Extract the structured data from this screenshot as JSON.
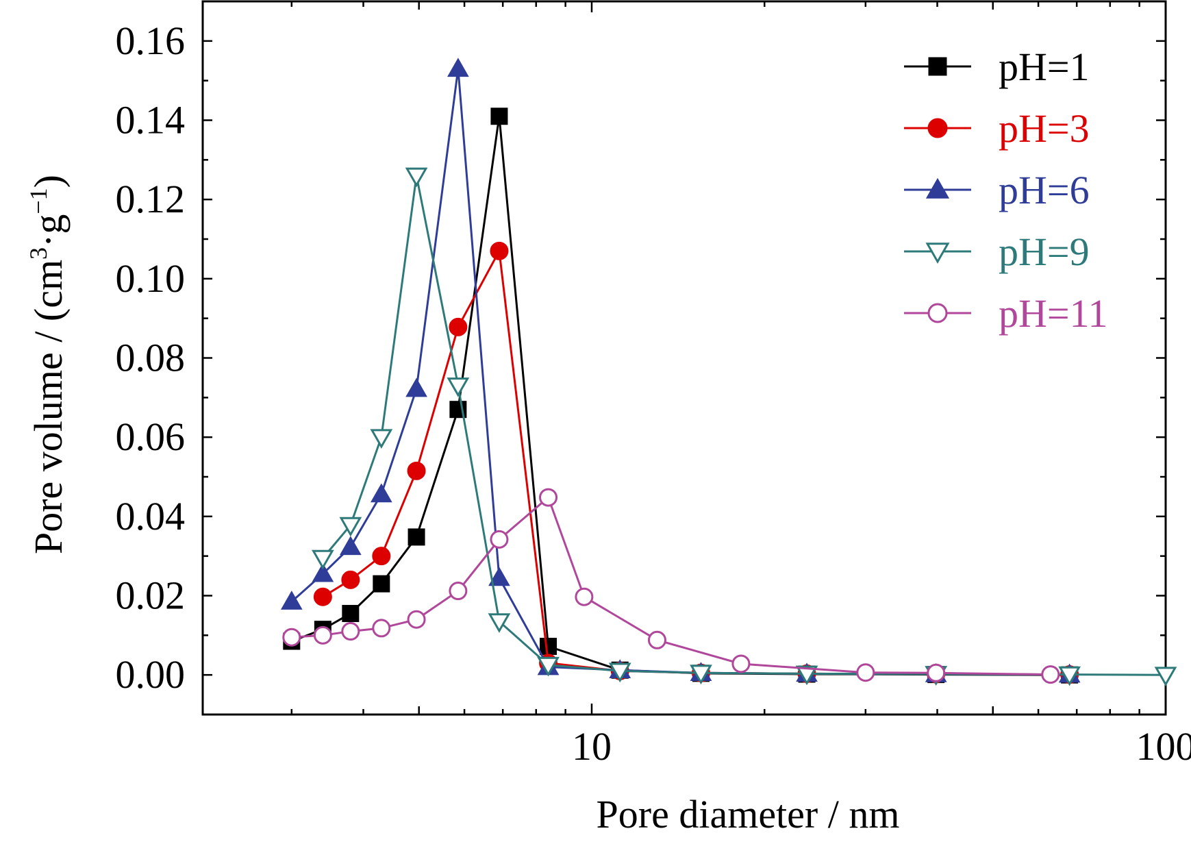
{
  "chart_data": {
    "type": "line",
    "xscale": "log",
    "xlim": [
      2.1,
      100
    ],
    "ylim": [
      -0.01,
      0.17
    ],
    "xlabel": "Pore diameter / nm",
    "ylabel_text": "Pore volume / (cm",
    "ylabel_sup1": "3",
    "ylabel_mid": "·g",
    "ylabel_sup2": "−1",
    "ylabel_end": ")",
    "xticks": [
      {
        "value": 10,
        "label": "10"
      },
      {
        "value": 100,
        "label": "100"
      }
    ],
    "yticks": [
      {
        "value": 0.0,
        "label": "0.00"
      },
      {
        "value": 0.02,
        "label": "0.02"
      },
      {
        "value": 0.04,
        "label": "0.04"
      },
      {
        "value": 0.06,
        "label": "0.06"
      },
      {
        "value": 0.08,
        "label": "0.08"
      },
      {
        "value": 0.1,
        "label": "0.10"
      },
      {
        "value": 0.12,
        "label": "0.12"
      },
      {
        "value": 0.14,
        "label": "0.14"
      },
      {
        "value": 0.16,
        "label": "0.16"
      }
    ],
    "legend_position": "top-right",
    "grid": false,
    "series": [
      {
        "name": "pH=1",
        "color": "#000000",
        "marker": "square-filled",
        "x": [
          3.0,
          3.4,
          3.8,
          4.3,
          4.95,
          5.85,
          6.9,
          8.4,
          11.2,
          15.5,
          23.7,
          39.8,
          68
        ],
        "y": [
          0.0085,
          0.0115,
          0.0155,
          0.023,
          0.0348,
          0.067,
          0.141,
          0.0072,
          0.0012,
          0.0004,
          0.0002,
          0.0001,
          0.0
        ]
      },
      {
        "name": "pH=3",
        "color": "#dd0000",
        "marker": "circle-filled",
        "x": [
          3.4,
          3.8,
          4.3,
          4.95,
          5.85,
          6.9,
          8.4,
          11.2,
          15.5,
          23.7,
          39.8,
          68
        ],
        "y": [
          0.0197,
          0.024,
          0.03,
          0.0515,
          0.0878,
          0.107,
          0.003,
          0.001,
          0.0005,
          0.0003,
          0.0002,
          0.0001
        ]
      },
      {
        "name": "pH=6",
        "color": "#2f3d99",
        "marker": "triangle-up-filled",
        "x": [
          3.0,
          3.4,
          3.8,
          4.3,
          4.95,
          5.85,
          6.9,
          8.4,
          11.2,
          15.5,
          23.7,
          39.8,
          68
        ],
        "y": [
          0.0185,
          0.0255,
          0.0323,
          0.0456,
          0.0722,
          0.153,
          0.0245,
          0.002,
          0.0012,
          0.0005,
          0.0003,
          0.0002,
          0.0001
        ]
      },
      {
        "name": "pH=9",
        "color": "#2e7a7a",
        "marker": "triangle-down-open",
        "x": [
          3.4,
          3.8,
          4.3,
          4.95,
          5.85,
          6.9,
          8.4,
          11.2,
          15.5,
          23.7,
          39.8,
          68,
          100
        ],
        "y": [
          0.0295,
          0.0378,
          0.06,
          0.126,
          0.073,
          0.0135,
          0.0025,
          0.001,
          0.0005,
          0.0003,
          0.0002,
          0.0001,
          0.0
        ]
      },
      {
        "name": "pH=11",
        "color": "#b0479a",
        "marker": "circle-open",
        "x": [
          3.0,
          3.4,
          3.8,
          4.3,
          4.95,
          5.85,
          6.9,
          8.4,
          9.7,
          13.0,
          18.2,
          30.0,
          39.8,
          63.0
        ],
        "y": [
          0.0095,
          0.01,
          0.011,
          0.0118,
          0.014,
          0.0212,
          0.0342,
          0.0448,
          0.0197,
          0.0088,
          0.0028,
          0.0006,
          0.0005,
          0.0001
        ]
      }
    ]
  }
}
